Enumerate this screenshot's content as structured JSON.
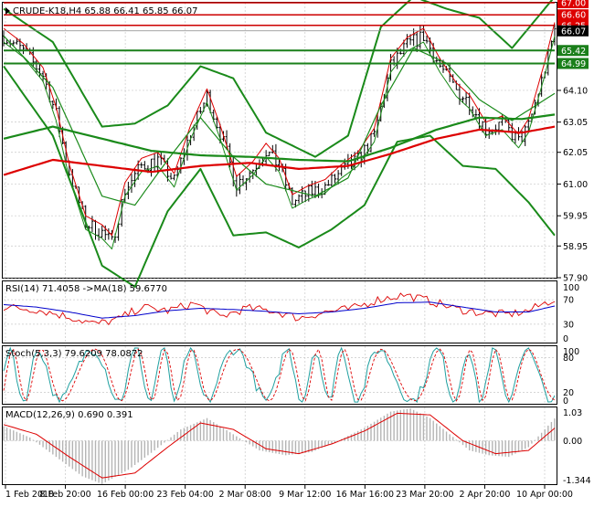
{
  "colors": {
    "background": "#ffffff",
    "grid": "#c8c8c8",
    "bar_up": "#000000",
    "level_green": "#1a7f1a",
    "level_red": "#cc0000",
    "bollinger": "#1a8a1a",
    "ma_long_green": "#1a8a1a",
    "ma_long_red": "#dd0000",
    "rsi_line": "#dd0000",
    "rsi_ma": "#0000cc",
    "stoch_main": "#20a0a0",
    "stoch_signal": "#dd0000",
    "macd_hist": "#b4b4b4",
    "macd_signal": "#dd0000",
    "price_tag_red": "#dd0000",
    "price_tag_green": "#1a7f1a",
    "price_tag_current": "#000000"
  },
  "chart_data": [
    {
      "type": "candlestick",
      "header": "CRUDE-K18,H4  65.88 66.41 65.85 66.07",
      "ylim": [
        57.9,
        67.0
      ],
      "yticks": [
        "57.90",
        "58.95",
        "59.95",
        "61.00",
        "62.05",
        "63.05",
        "64.10"
      ],
      "xticks": [
        "1 Feb 2018",
        "8 Feb 20:00",
        "16 Feb 00:00",
        "23 Feb 04:00",
        "2 Mar 08:00",
        "9 Mar 12:00",
        "16 Mar 16:00",
        "23 Mar 20:00",
        "2 Apr 20:00",
        "10 Apr 00:00"
      ],
      "levels": [
        {
          "value": 67.0,
          "label": "67.00",
          "color": "red"
        },
        {
          "value": 66.6,
          "label": "66.60",
          "color": "red"
        },
        {
          "value": 66.25,
          "label": "66.25",
          "color": "red"
        },
        {
          "value": 65.42,
          "label": "65.42",
          "color": "green"
        },
        {
          "value": 64.99,
          "label": "64.99",
          "color": "green"
        }
      ],
      "current_price": {
        "value": 66.07,
        "label": "66.07"
      },
      "close_path": [
        [
          0,
          65.9
        ],
        [
          6,
          65.4
        ],
        [
          12,
          64.6
        ],
        [
          16,
          63.3
        ],
        [
          20,
          61.4
        ],
        [
          25,
          59.7
        ],
        [
          30,
          59.4
        ],
        [
          33,
          59.05
        ],
        [
          37,
          60.8
        ],
        [
          42,
          61.6
        ],
        [
          47,
          61.8
        ],
        [
          52,
          61.1
        ],
        [
          57,
          62.7
        ],
        [
          62,
          63.9
        ],
        [
          66,
          62.7
        ],
        [
          71,
          61.0
        ],
        [
          76,
          61.5
        ],
        [
          80,
          62.1
        ],
        [
          84,
          61.6
        ],
        [
          88,
          60.4
        ],
        [
          93,
          60.7
        ],
        [
          98,
          60.9
        ],
        [
          103,
          61.4
        ],
        [
          108,
          61.8
        ],
        [
          113,
          62.6
        ],
        [
          118,
          64.9
        ],
        [
          123,
          65.6
        ],
        [
          128,
          65.9
        ],
        [
          133,
          64.9
        ],
        [
          138,
          64.1
        ],
        [
          142,
          63.7
        ],
        [
          147,
          62.8
        ],
        [
          152,
          63.0
        ],
        [
          157,
          62.4
        ],
        [
          160,
          62.9
        ],
        [
          165,
          64.8
        ],
        [
          168,
          66.1
        ]
      ],
      "bollinger_upper": [
        [
          0,
          66.8
        ],
        [
          15,
          65.7
        ],
        [
          30,
          62.9
        ],
        [
          40,
          63.0
        ],
        [
          50,
          63.6
        ],
        [
          60,
          64.9
        ],
        [
          70,
          64.5
        ],
        [
          80,
          62.7
        ],
        [
          95,
          61.9
        ],
        [
          105,
          62.6
        ],
        [
          115,
          66.2
        ],
        [
          125,
          67.2
        ],
        [
          135,
          66.8
        ],
        [
          145,
          66.5
        ],
        [
          155,
          65.5
        ],
        [
          168,
          67.2
        ]
      ],
      "bollinger_lower": [
        [
          0,
          64.9
        ],
        [
          15,
          62.6
        ],
        [
          30,
          58.3
        ],
        [
          40,
          57.6
        ],
        [
          50,
          60.1
        ],
        [
          60,
          61.5
        ],
        [
          70,
          59.3
        ],
        [
          80,
          59.4
        ],
        [
          90,
          58.9
        ],
        [
          100,
          59.5
        ],
        [
          110,
          60.3
        ],
        [
          120,
          62.4
        ],
        [
          130,
          62.6
        ],
        [
          140,
          61.6
        ],
        [
          150,
          61.5
        ],
        [
          160,
          60.4
        ],
        [
          168,
          59.3
        ]
      ],
      "bollinger_mid": [
        [
          0,
          65.9
        ],
        [
          15,
          64.2
        ],
        [
          30,
          60.6
        ],
        [
          40,
          60.3
        ],
        [
          50,
          61.8
        ],
        [
          60,
          63.2
        ],
        [
          70,
          61.9
        ],
        [
          80,
          61.0
        ],
        [
          95,
          60.6
        ],
        [
          105,
          61.2
        ],
        [
          115,
          63.6
        ],
        [
          125,
          65.5
        ],
        [
          135,
          65.0
        ],
        [
          145,
          63.8
        ],
        [
          155,
          63.1
        ],
        [
          168,
          64.0
        ]
      ],
      "ma_long_green": [
        [
          0,
          62.5
        ],
        [
          15,
          62.9
        ],
        [
          30,
          62.5
        ],
        [
          45,
          62.1
        ],
        [
          60,
          61.95
        ],
        [
          75,
          61.9
        ],
        [
          90,
          61.8
        ],
        [
          105,
          61.75
        ],
        [
          118,
          62.2
        ],
        [
          132,
          62.8
        ],
        [
          145,
          63.2
        ],
        [
          158,
          63.15
        ],
        [
          168,
          63.3
        ]
      ],
      "ma_long_red": [
        [
          0,
          61.3
        ],
        [
          15,
          61.8
        ],
        [
          30,
          61.6
        ],
        [
          45,
          61.4
        ],
        [
          60,
          61.6
        ],
        [
          75,
          61.7
        ],
        [
          90,
          61.5
        ],
        [
          105,
          61.6
        ],
        [
          118,
          62.0
        ],
        [
          132,
          62.5
        ],
        [
          145,
          62.8
        ],
        [
          158,
          62.7
        ],
        [
          168,
          62.9
        ]
      ]
    },
    {
      "type": "line",
      "header": "RSI(14) 71.4058  ->MA(18) 59.6770",
      "ylim": [
        0,
        100
      ],
      "yticks": [
        "100",
        "70",
        "30",
        "0"
      ],
      "series_rsi": [
        [
          0,
          58
        ],
        [
          10,
          54
        ],
        [
          20,
          42
        ],
        [
          28,
          30
        ],
        [
          35,
          38
        ],
        [
          42,
          58
        ],
        [
          50,
          52
        ],
        [
          58,
          64
        ],
        [
          66,
          42
        ],
        [
          74,
          56
        ],
        [
          82,
          52
        ],
        [
          90,
          40
        ],
        [
          98,
          50
        ],
        [
          106,
          55
        ],
        [
          114,
          70
        ],
        [
          122,
          78
        ],
        [
          130,
          68
        ],
        [
          138,
          55
        ],
        [
          146,
          48
        ],
        [
          154,
          46
        ],
        [
          160,
          52
        ],
        [
          168,
          71.4
        ]
      ],
      "series_ma": [
        [
          0,
          62
        ],
        [
          10,
          58
        ],
        [
          20,
          50
        ],
        [
          30,
          40
        ],
        [
          40,
          44
        ],
        [
          50,
          52
        ],
        [
          60,
          56
        ],
        [
          70,
          54
        ],
        [
          80,
          51
        ],
        [
          90,
          47
        ],
        [
          100,
          50
        ],
        [
          110,
          56
        ],
        [
          120,
          65
        ],
        [
          130,
          66
        ],
        [
          140,
          58
        ],
        [
          150,
          50
        ],
        [
          160,
          50
        ],
        [
          168,
          59.7
        ]
      ]
    },
    {
      "type": "line",
      "header": "Stoch(5,3,3) 79.6209 78.0872",
      "ylim": [
        0,
        100
      ],
      "yticks": [
        "100",
        "80",
        "20",
        "0"
      ],
      "current": [
        79.6209,
        78.0872
      ]
    },
    {
      "type": "bar",
      "header": "MACD(12,26,9) 0.690 0.391",
      "ylim": [
        -1.344,
        1.03
      ],
      "yticks": [
        "1.03",
        "0.00",
        "-1.344"
      ],
      "hist_path": [
        [
          0,
          0.45
        ],
        [
          8,
          0.1
        ],
        [
          16,
          -0.5
        ],
        [
          24,
          -1.1
        ],
        [
          30,
          -1.34
        ],
        [
          38,
          -0.9
        ],
        [
          46,
          -0.3
        ],
        [
          54,
          0.35
        ],
        [
          62,
          0.7
        ],
        [
          70,
          0.2
        ],
        [
          78,
          -0.3
        ],
        [
          86,
          -0.45
        ],
        [
          94,
          -0.35
        ],
        [
          102,
          0.0
        ],
        [
          110,
          0.4
        ],
        [
          118,
          0.9
        ],
        [
          124,
          1.0
        ],
        [
          130,
          0.7
        ],
        [
          136,
          0.2
        ],
        [
          142,
          -0.3
        ],
        [
          148,
          -0.45
        ],
        [
          154,
          -0.5
        ],
        [
          160,
          -0.2
        ],
        [
          168,
          0.69
        ]
      ],
      "signal_path": [
        [
          0,
          0.5
        ],
        [
          10,
          0.2
        ],
        [
          20,
          -0.5
        ],
        [
          30,
          -1.15
        ],
        [
          40,
          -1.0
        ],
        [
          50,
          -0.2
        ],
        [
          60,
          0.55
        ],
        [
          70,
          0.35
        ],
        [
          80,
          -0.25
        ],
        [
          90,
          -0.4
        ],
        [
          100,
          -0.1
        ],
        [
          110,
          0.3
        ],
        [
          120,
          0.85
        ],
        [
          130,
          0.8
        ],
        [
          140,
          0.0
        ],
        [
          150,
          -0.4
        ],
        [
          160,
          -0.3
        ],
        [
          168,
          0.39
        ]
      ]
    }
  ]
}
